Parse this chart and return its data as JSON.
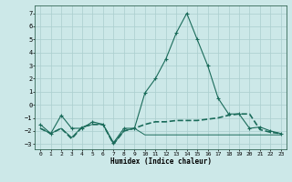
{
  "xlabel": "Humidex (Indice chaleur)",
  "x": [
    0,
    1,
    2,
    3,
    4,
    5,
    6,
    7,
    8,
    9,
    10,
    11,
    12,
    13,
    14,
    15,
    16,
    17,
    18,
    19,
    20,
    21,
    22,
    23
  ],
  "series1": [
    -1.5,
    -2.2,
    -0.8,
    -1.8,
    -1.8,
    -1.3,
    -1.5,
    -2.9,
    -1.8,
    -1.8,
    0.9,
    2.0,
    3.5,
    5.5,
    7.0,
    5.0,
    3.0,
    0.5,
    -0.7,
    -0.7,
    -1.8,
    -1.7,
    -2.0,
    -2.2
  ],
  "series2": [
    -1.8,
    -2.2,
    -1.8,
    -2.6,
    -1.7,
    -1.5,
    -1.5,
    -3.0,
    -2.0,
    -1.8,
    -1.5,
    -1.3,
    -1.3,
    -1.2,
    -1.2,
    -1.2,
    -1.1,
    -1.0,
    -0.8,
    -0.7,
    -0.7,
    -1.9,
    -2.1,
    -2.2
  ],
  "series3": [
    -1.8,
    -2.2,
    -1.8,
    -2.5,
    -1.7,
    -1.5,
    -1.5,
    -3.0,
    -2.0,
    -1.8,
    -2.3,
    -2.3,
    -2.3,
    -2.3,
    -2.3,
    -2.3,
    -2.3,
    -2.3,
    -2.3,
    -2.3,
    -2.3,
    -2.3,
    -2.3,
    -2.3
  ],
  "line_color": "#1a6b5a",
  "bg_color": "#cce8e8",
  "grid_color": "#aacece",
  "ylim": [
    -3.4,
    7.6
  ],
  "yticks": [
    -3,
    -2,
    -1,
    0,
    1,
    2,
    3,
    4,
    5,
    6,
    7
  ],
  "figsize": [
    3.2,
    2.0
  ],
  "dpi": 100
}
